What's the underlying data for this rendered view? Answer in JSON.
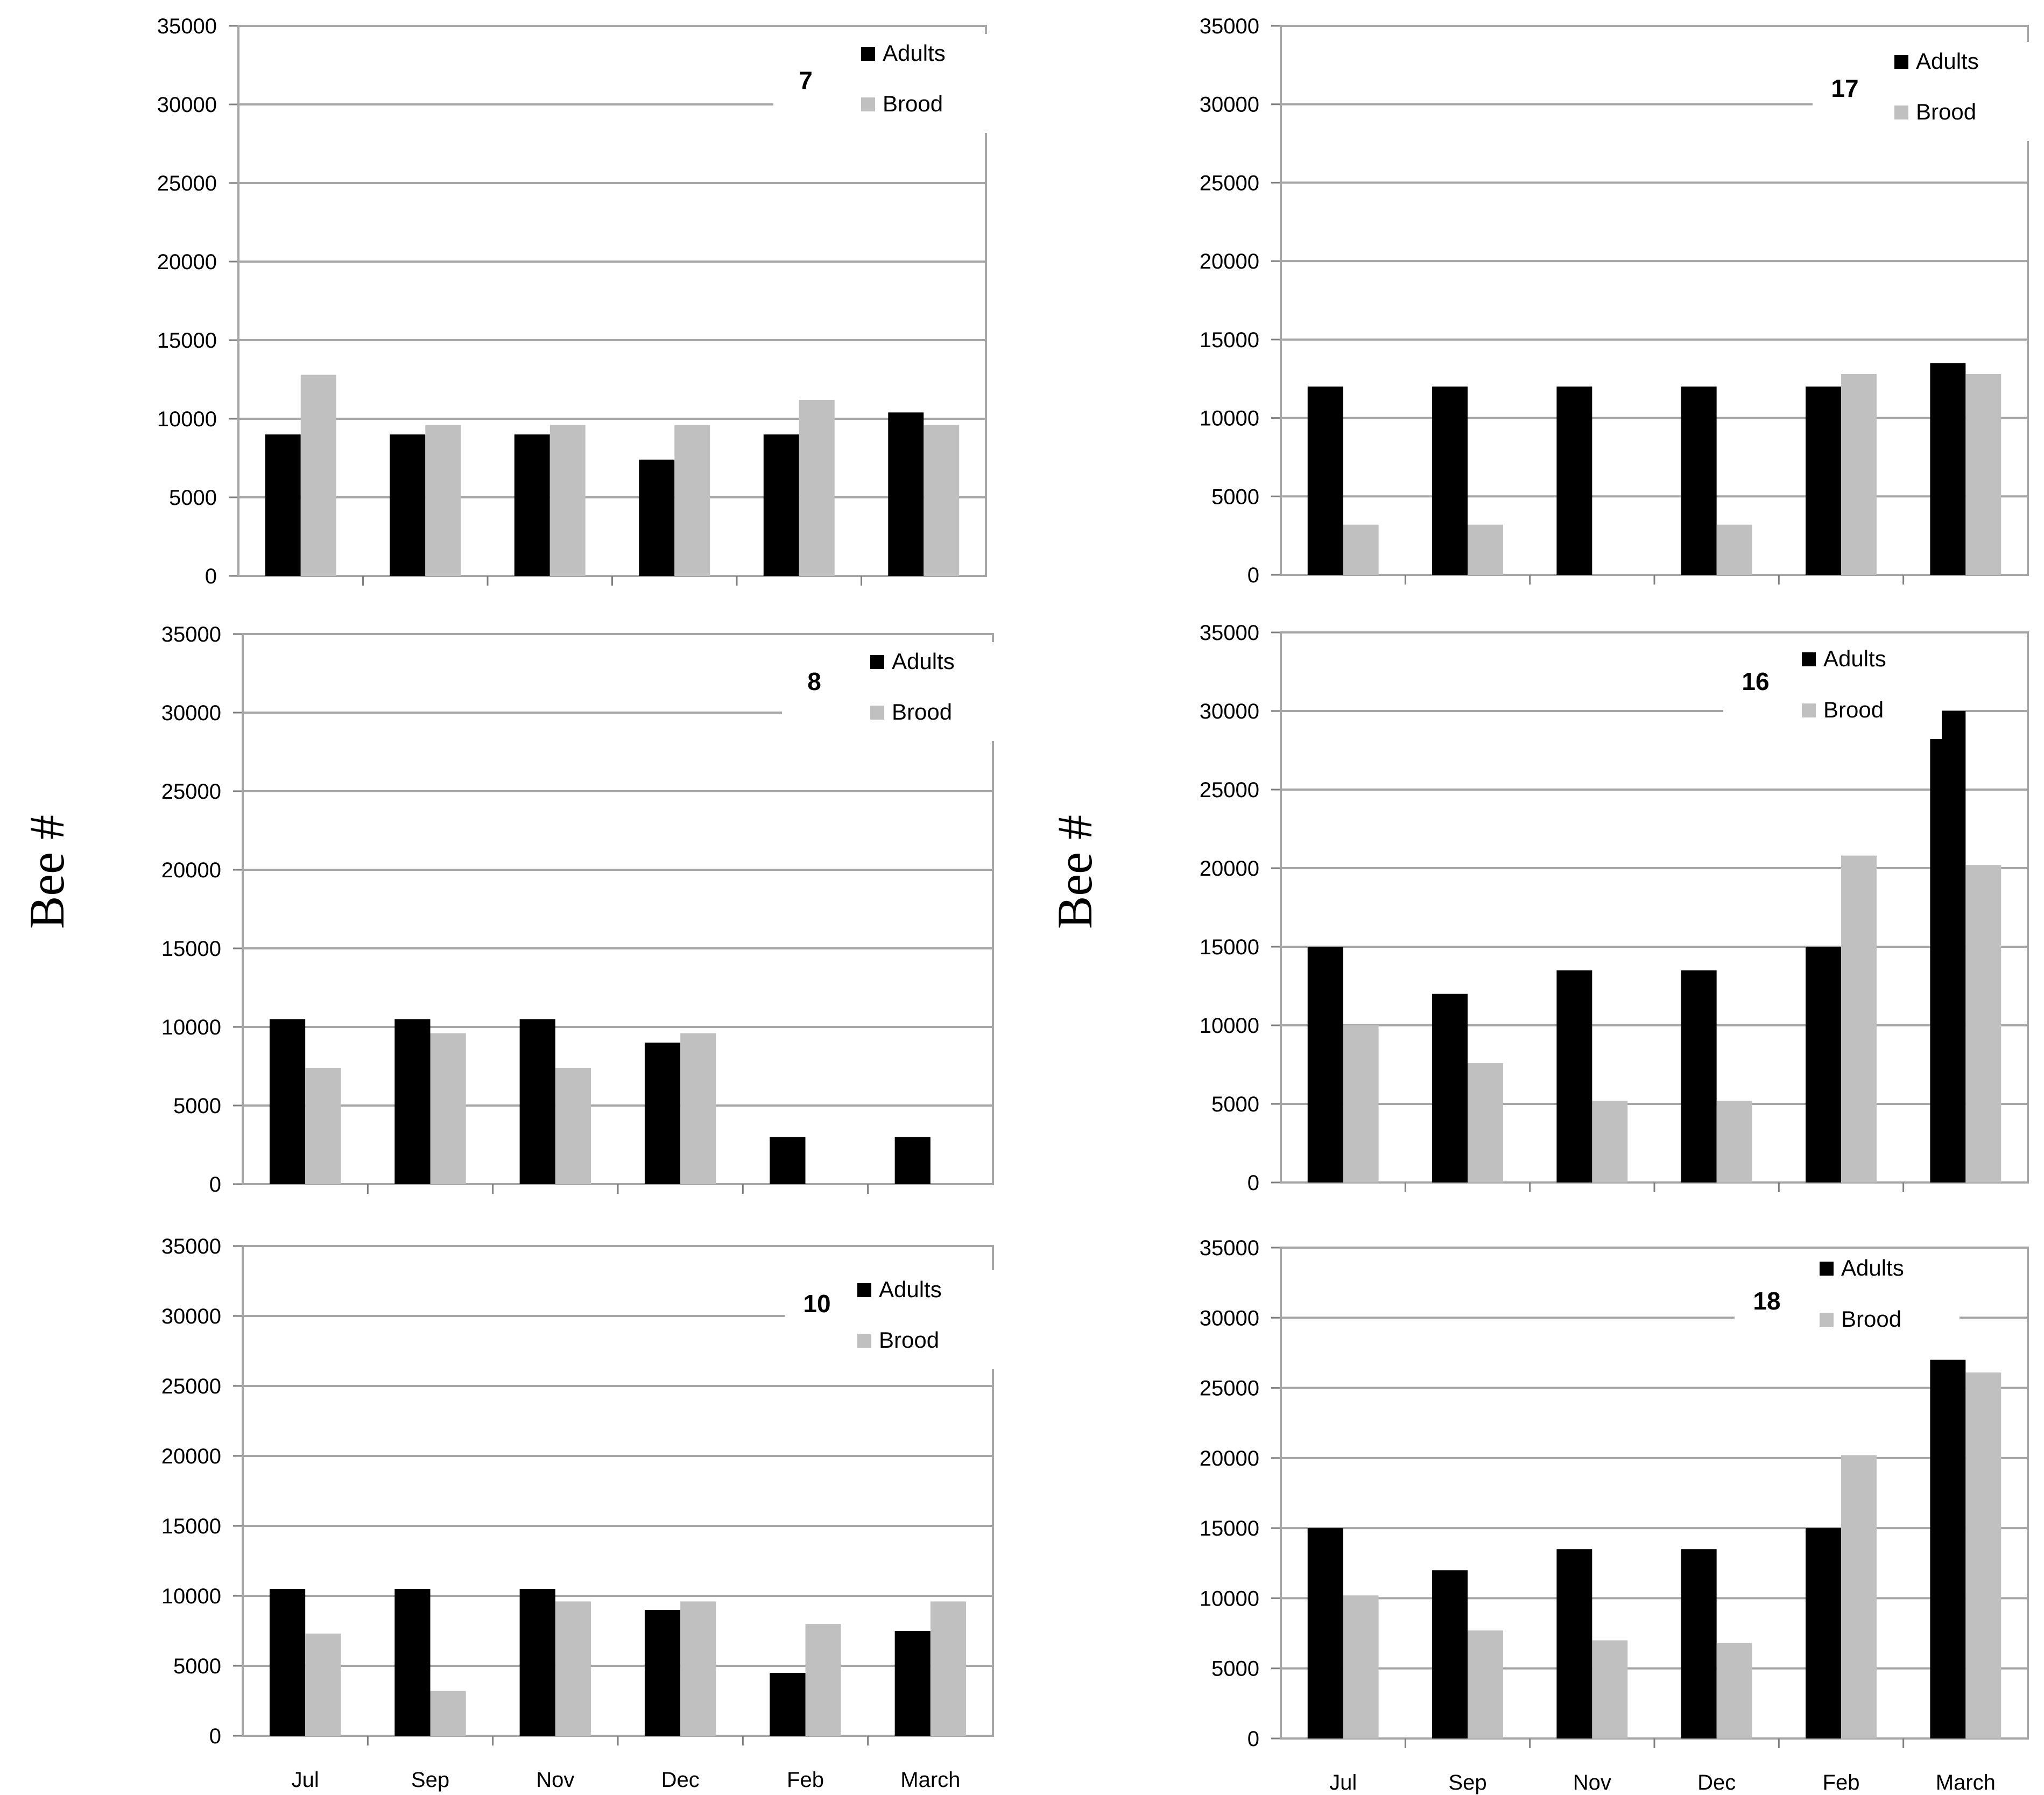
{
  "colors": {
    "adults": "#000000",
    "brood": "#c0c0c0",
    "grid": "#a6a6a6",
    "frame": "#a6a6a6"
  },
  "ylabels": [
    "Bee #",
    "Bee #"
  ],
  "chart_data": [
    {
      "type": "bar",
      "title": "7",
      "categories": [
        "Jul",
        "Sep",
        "Nov",
        "Dec",
        "Feb",
        "March"
      ],
      "series": [
        {
          "name": "Adults",
          "values": [
            9000,
            9000,
            9000,
            7400,
            9000,
            10400
          ]
        },
        {
          "name": "Brood",
          "values": [
            12800,
            9600,
            9600,
            9600,
            11200,
            9600
          ]
        }
      ],
      "ylim": [
        0,
        35000
      ],
      "yticks": [
        0,
        5000,
        10000,
        15000,
        20000,
        25000,
        30000,
        35000
      ],
      "show_xticks": false,
      "grid": true,
      "legend": "top-right"
    },
    {
      "type": "bar",
      "title": "17",
      "categories": [
        "Jul",
        "Sep",
        "Nov",
        "Dec",
        "Feb",
        "March"
      ],
      "series": [
        {
          "name": "Adults",
          "values": [
            12000,
            12000,
            12000,
            12000,
            12000,
            13500
          ]
        },
        {
          "name": "Brood",
          "values": [
            3200,
            3200,
            0,
            3200,
            12800,
            12800
          ]
        }
      ],
      "ylim": [
        0,
        35000
      ],
      "yticks": [
        0,
        5000,
        10000,
        15000,
        20000,
        25000,
        30000,
        35000
      ],
      "show_xticks": false,
      "grid": true,
      "legend": "top-right"
    },
    {
      "type": "bar",
      "title": "8",
      "categories": [
        "Jul",
        "Sep",
        "Nov",
        "Dec",
        "Feb",
        "March"
      ],
      "series": [
        {
          "name": "Adults",
          "values": [
            10500,
            10500,
            10500,
            9000,
            3000,
            3000
          ]
        },
        {
          "name": "Brood",
          "values": [
            7400,
            9600,
            7400,
            9600,
            0,
            0
          ]
        }
      ],
      "ylim": [
        0,
        35000
      ],
      "yticks": [
        0,
        5000,
        10000,
        15000,
        20000,
        25000,
        30000,
        35000
      ],
      "show_xticks": false,
      "grid": true,
      "legend": "top-right"
    },
    {
      "type": "bar",
      "title": "16",
      "categories": [
        "Jul",
        "Sep",
        "Nov",
        "Dec",
        "Feb",
        "March"
      ],
      "series": [
        {
          "name": "Adults",
          "values": [
            15000,
            12000,
            13500,
            13500,
            15000,
            30000
          ]
        },
        {
          "name": "Brood",
          "values": [
            10000,
            7600,
            5200,
            5200,
            20800,
            20200
          ]
        }
      ],
      "ylim": [
        0,
        35000
      ],
      "yticks": [
        0,
        5000,
        10000,
        15000,
        20000,
        25000,
        30000,
        35000
      ],
      "show_xticks": false,
      "grid": true,
      "legend": "top-right"
    },
    {
      "type": "bar",
      "title": "10",
      "categories": [
        "Jul",
        "Sep",
        "Nov",
        "Dec",
        "Feb",
        "March"
      ],
      "series": [
        {
          "name": "Adults",
          "values": [
            10500,
            10500,
            10500,
            9000,
            4500,
            7500
          ]
        },
        {
          "name": "Brood",
          "values": [
            7300,
            3200,
            9600,
            9600,
            8000,
            9600
          ]
        }
      ],
      "ylim": [
        0,
        35000
      ],
      "yticks": [
        0,
        5000,
        10000,
        15000,
        20000,
        25000,
        30000,
        35000
      ],
      "show_xticks": true,
      "grid": true,
      "legend": "top-right"
    },
    {
      "type": "bar",
      "title": "18",
      "categories": [
        "Jul",
        "Sep",
        "Nov",
        "Dec",
        "Feb",
        "March"
      ],
      "series": [
        {
          "name": "Adults",
          "values": [
            15000,
            12000,
            13500,
            13500,
            15000,
            27000
          ]
        },
        {
          "name": "Brood",
          "values": [
            10200,
            7700,
            7000,
            6800,
            20200,
            26100
          ]
        }
      ],
      "ylim": [
        0,
        35000
      ],
      "yticks": [
        0,
        5000,
        10000,
        15000,
        20000,
        25000,
        30000,
        35000
      ],
      "show_xticks": true,
      "grid": true,
      "legend": "top-right"
    }
  ]
}
